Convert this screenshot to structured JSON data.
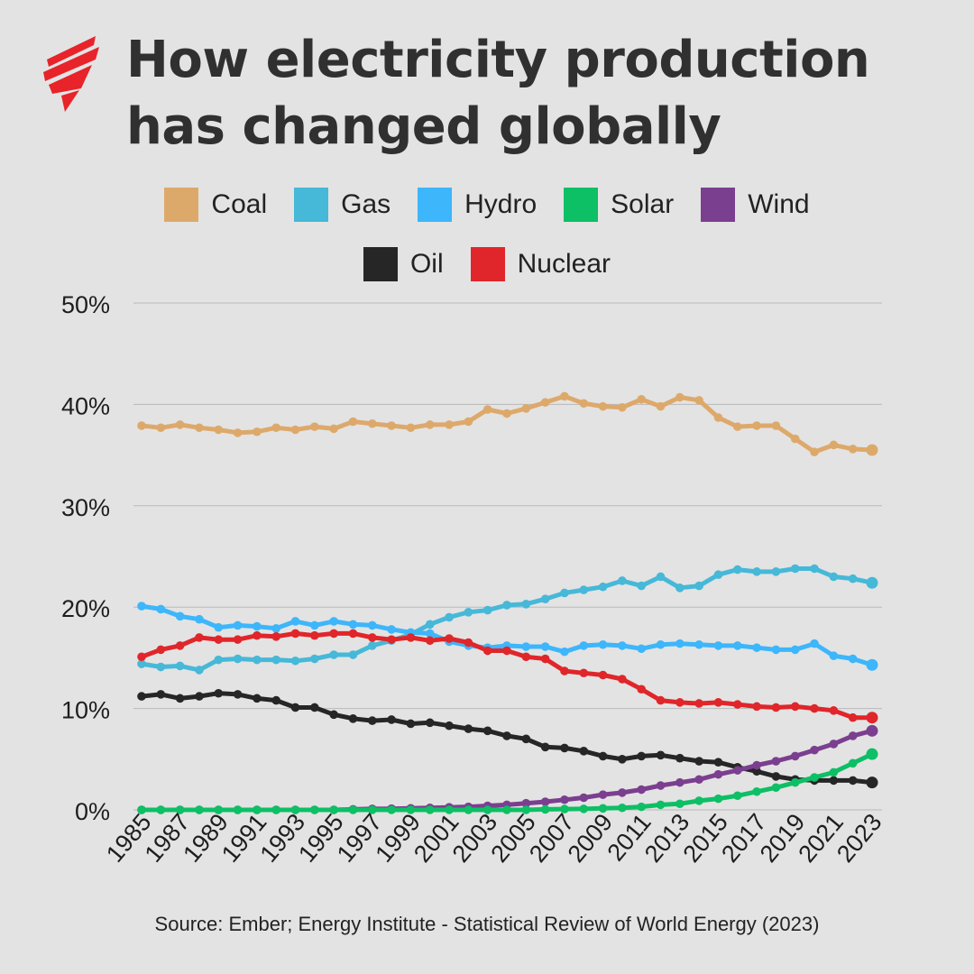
{
  "title": {
    "line1": "How electricity production",
    "line2": "has changed globally"
  },
  "legend": [
    {
      "name": "Coal",
      "color": "#dda96b"
    },
    {
      "name": "Gas",
      "color": "#46b8d8"
    },
    {
      "name": "Hydro",
      "color": "#3db6fb"
    },
    {
      "name": "Solar",
      "color": "#0dbf65"
    },
    {
      "name": "Wind",
      "color": "#7b3f8f"
    },
    {
      "name": "Oil",
      "color": "#262626"
    },
    {
      "name": "Nuclear",
      "color": "#e0262a"
    }
  ],
  "source": "Source: Ember; Energy Institute - Statistical Review of World Energy (2023)",
  "chart_data": {
    "type": "line",
    "title": "How electricity production has changed globally",
    "xlabel": "",
    "ylabel": "",
    "ylim": [
      0,
      50
    ],
    "yticks": [
      "0%",
      "10%",
      "20%",
      "30%",
      "40%",
      "50%"
    ],
    "grid": true,
    "x": [
      1985,
      1986,
      1987,
      1988,
      1989,
      1990,
      1991,
      1992,
      1993,
      1994,
      1995,
      1996,
      1997,
      1998,
      1999,
      2000,
      2001,
      2002,
      2003,
      2004,
      2005,
      2006,
      2007,
      2008,
      2009,
      2010,
      2011,
      2012,
      2013,
      2014,
      2015,
      2016,
      2017,
      2018,
      2019,
      2020,
      2021,
      2022,
      2023
    ],
    "xtick_labels": [
      "1985",
      "1987",
      "1989",
      "1991",
      "1993",
      "1995",
      "1997",
      "1999",
      "2001",
      "2003",
      "2005",
      "2007",
      "2009",
      "2011",
      "2013",
      "2015",
      "2017",
      "2019",
      "2021",
      "2023"
    ],
    "series": [
      {
        "name": "Coal",
        "color": "#dda96b",
        "values": [
          37.9,
          37.7,
          38.0,
          37.7,
          37.5,
          37.2,
          37.3,
          37.7,
          37.5,
          37.8,
          37.6,
          38.3,
          38.1,
          37.9,
          37.7,
          38.0,
          38.0,
          38.3,
          39.5,
          39.1,
          39.6,
          40.2,
          40.8,
          40.1,
          39.8,
          39.7,
          40.5,
          39.8,
          40.7,
          40.4,
          38.7,
          37.8,
          37.9,
          37.9,
          36.6,
          35.3,
          36.0,
          35.6,
          35.5
        ]
      },
      {
        "name": "Gas",
        "color": "#46b8d8",
        "values": [
          14.4,
          14.1,
          14.2,
          13.8,
          14.8,
          14.9,
          14.8,
          14.8,
          14.7,
          14.9,
          15.3,
          15.3,
          16.2,
          16.7,
          17.3,
          18.3,
          19.0,
          19.5,
          19.7,
          20.2,
          20.3,
          20.8,
          21.4,
          21.7,
          22.0,
          22.6,
          22.1,
          23.0,
          21.9,
          22.1,
          23.2,
          23.7,
          23.5,
          23.5,
          23.8,
          23.8,
          23.0,
          22.8,
          22.4
        ]
      },
      {
        "name": "Hydro",
        "color": "#3db6fb",
        "values": [
          20.1,
          19.8,
          19.1,
          18.8,
          18.0,
          18.2,
          18.1,
          17.9,
          18.6,
          18.2,
          18.6,
          18.3,
          18.2,
          17.8,
          17.5,
          17.4,
          16.6,
          16.2,
          16.0,
          16.2,
          16.1,
          16.1,
          15.6,
          16.2,
          16.3,
          16.2,
          15.9,
          16.3,
          16.4,
          16.3,
          16.2,
          16.2,
          16.0,
          15.8,
          15.8,
          16.4,
          15.2,
          14.9,
          14.3
        ]
      },
      {
        "name": "Solar",
        "color": "#0dbf65",
        "values": [
          0,
          0,
          0,
          0,
          0,
          0,
          0,
          0,
          0,
          0,
          0,
          0,
          0,
          0,
          0,
          0,
          0,
          0,
          0,
          0,
          0,
          0.05,
          0.08,
          0.1,
          0.15,
          0.2,
          0.3,
          0.5,
          0.6,
          0.9,
          1.1,
          1.4,
          1.8,
          2.2,
          2.7,
          3.2,
          3.7,
          4.6,
          5.5
        ]
      },
      {
        "name": "Wind",
        "color": "#7b3f8f",
        "values": [
          0,
          0,
          0,
          0,
          0,
          0,
          0,
          0,
          0,
          0,
          0,
          0.05,
          0.1,
          0.12,
          0.15,
          0.2,
          0.25,
          0.3,
          0.4,
          0.5,
          0.65,
          0.8,
          1.0,
          1.2,
          1.5,
          1.7,
          2.0,
          2.4,
          2.7,
          3.0,
          3.5,
          3.9,
          4.4,
          4.8,
          5.3,
          5.9,
          6.5,
          7.3,
          7.8
        ]
      },
      {
        "name": "Oil",
        "color": "#262626",
        "values": [
          11.2,
          11.4,
          11.0,
          11.2,
          11.5,
          11.4,
          11.0,
          10.8,
          10.1,
          10.1,
          9.4,
          9.0,
          8.8,
          8.9,
          8.5,
          8.6,
          8.3,
          8.0,
          7.8,
          7.3,
          7.0,
          6.2,
          6.1,
          5.8,
          5.3,
          5.0,
          5.3,
          5.4,
          5.1,
          4.8,
          4.7,
          4.2,
          3.8,
          3.3,
          3.0,
          2.9,
          2.9,
          2.9,
          2.7
        ]
      },
      {
        "name": "Nuclear",
        "color": "#e0262a",
        "values": [
          15.1,
          15.8,
          16.2,
          17.0,
          16.8,
          16.8,
          17.2,
          17.1,
          17.4,
          17.2,
          17.4,
          17.4,
          17.0,
          16.8,
          17.0,
          16.7,
          16.9,
          16.5,
          15.7,
          15.7,
          15.1,
          14.9,
          13.7,
          13.5,
          13.3,
          12.9,
          11.9,
          10.8,
          10.6,
          10.5,
          10.6,
          10.4,
          10.2,
          10.1,
          10.2,
          10.0,
          9.8,
          9.1,
          9.1
        ]
      }
    ]
  }
}
